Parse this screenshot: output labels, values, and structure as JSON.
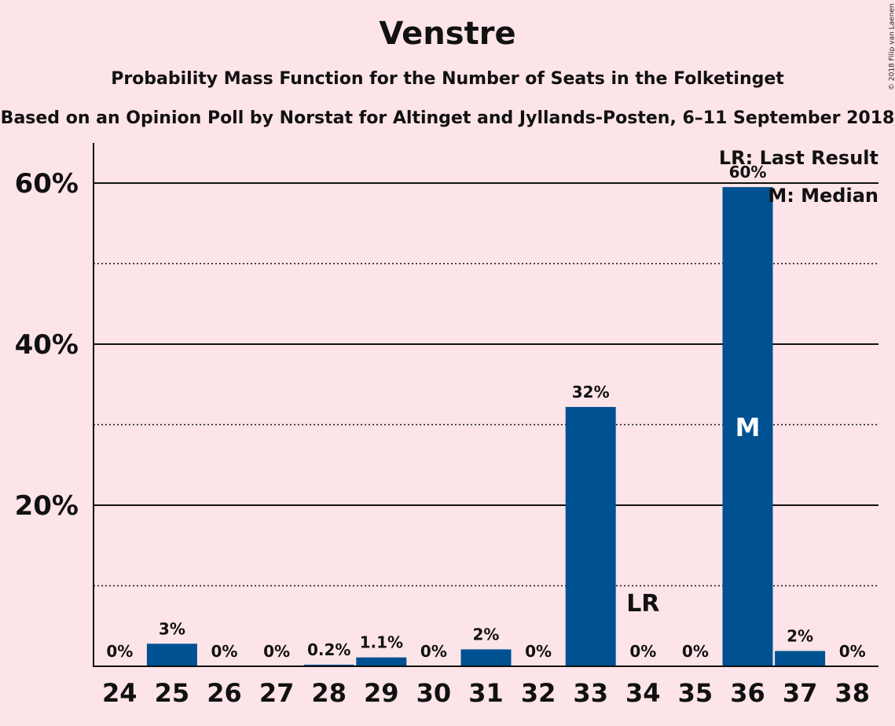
{
  "chart_data": {
    "type": "bar",
    "title": "Venstre",
    "subtitle": "Probability Mass Function for the Number of Seats in the Folketinget",
    "subsubtitle": "Based on an Opinion Poll by Norstat for Altinget and Jyllands-Posten, 6–11 September 2018",
    "copyright": "© 2018 Filip van Laenen",
    "categories": [
      "24",
      "25",
      "26",
      "27",
      "28",
      "29",
      "30",
      "31",
      "32",
      "33",
      "34",
      "35",
      "36",
      "37",
      "38"
    ],
    "values": [
      0,
      2.8,
      0,
      0,
      0.2,
      1.1,
      0,
      2.1,
      0,
      32.2,
      0,
      0,
      59.5,
      1.9,
      0
    ],
    "value_labels": [
      "0%",
      "3%",
      "0%",
      "0%",
      "0.2%",
      "1.1%",
      "0%",
      "2%",
      "0%",
      "32%",
      "0%",
      "0%",
      "60%",
      "2%",
      "0%"
    ],
    "ylim": [
      0,
      65
    ],
    "y_major_ticks": [
      20,
      40,
      60
    ],
    "y_major_tick_labels": [
      "20%",
      "40%",
      "60%"
    ],
    "y_minor_gridlines": [
      10,
      30,
      50
    ],
    "bar_color": "#005192",
    "last_result_category": "34",
    "last_result_label": "LR",
    "median_category": "36",
    "median_label": "M",
    "legend": [
      "LR: Last Result",
      "M: Median"
    ],
    "legend_position": "top-right"
  }
}
